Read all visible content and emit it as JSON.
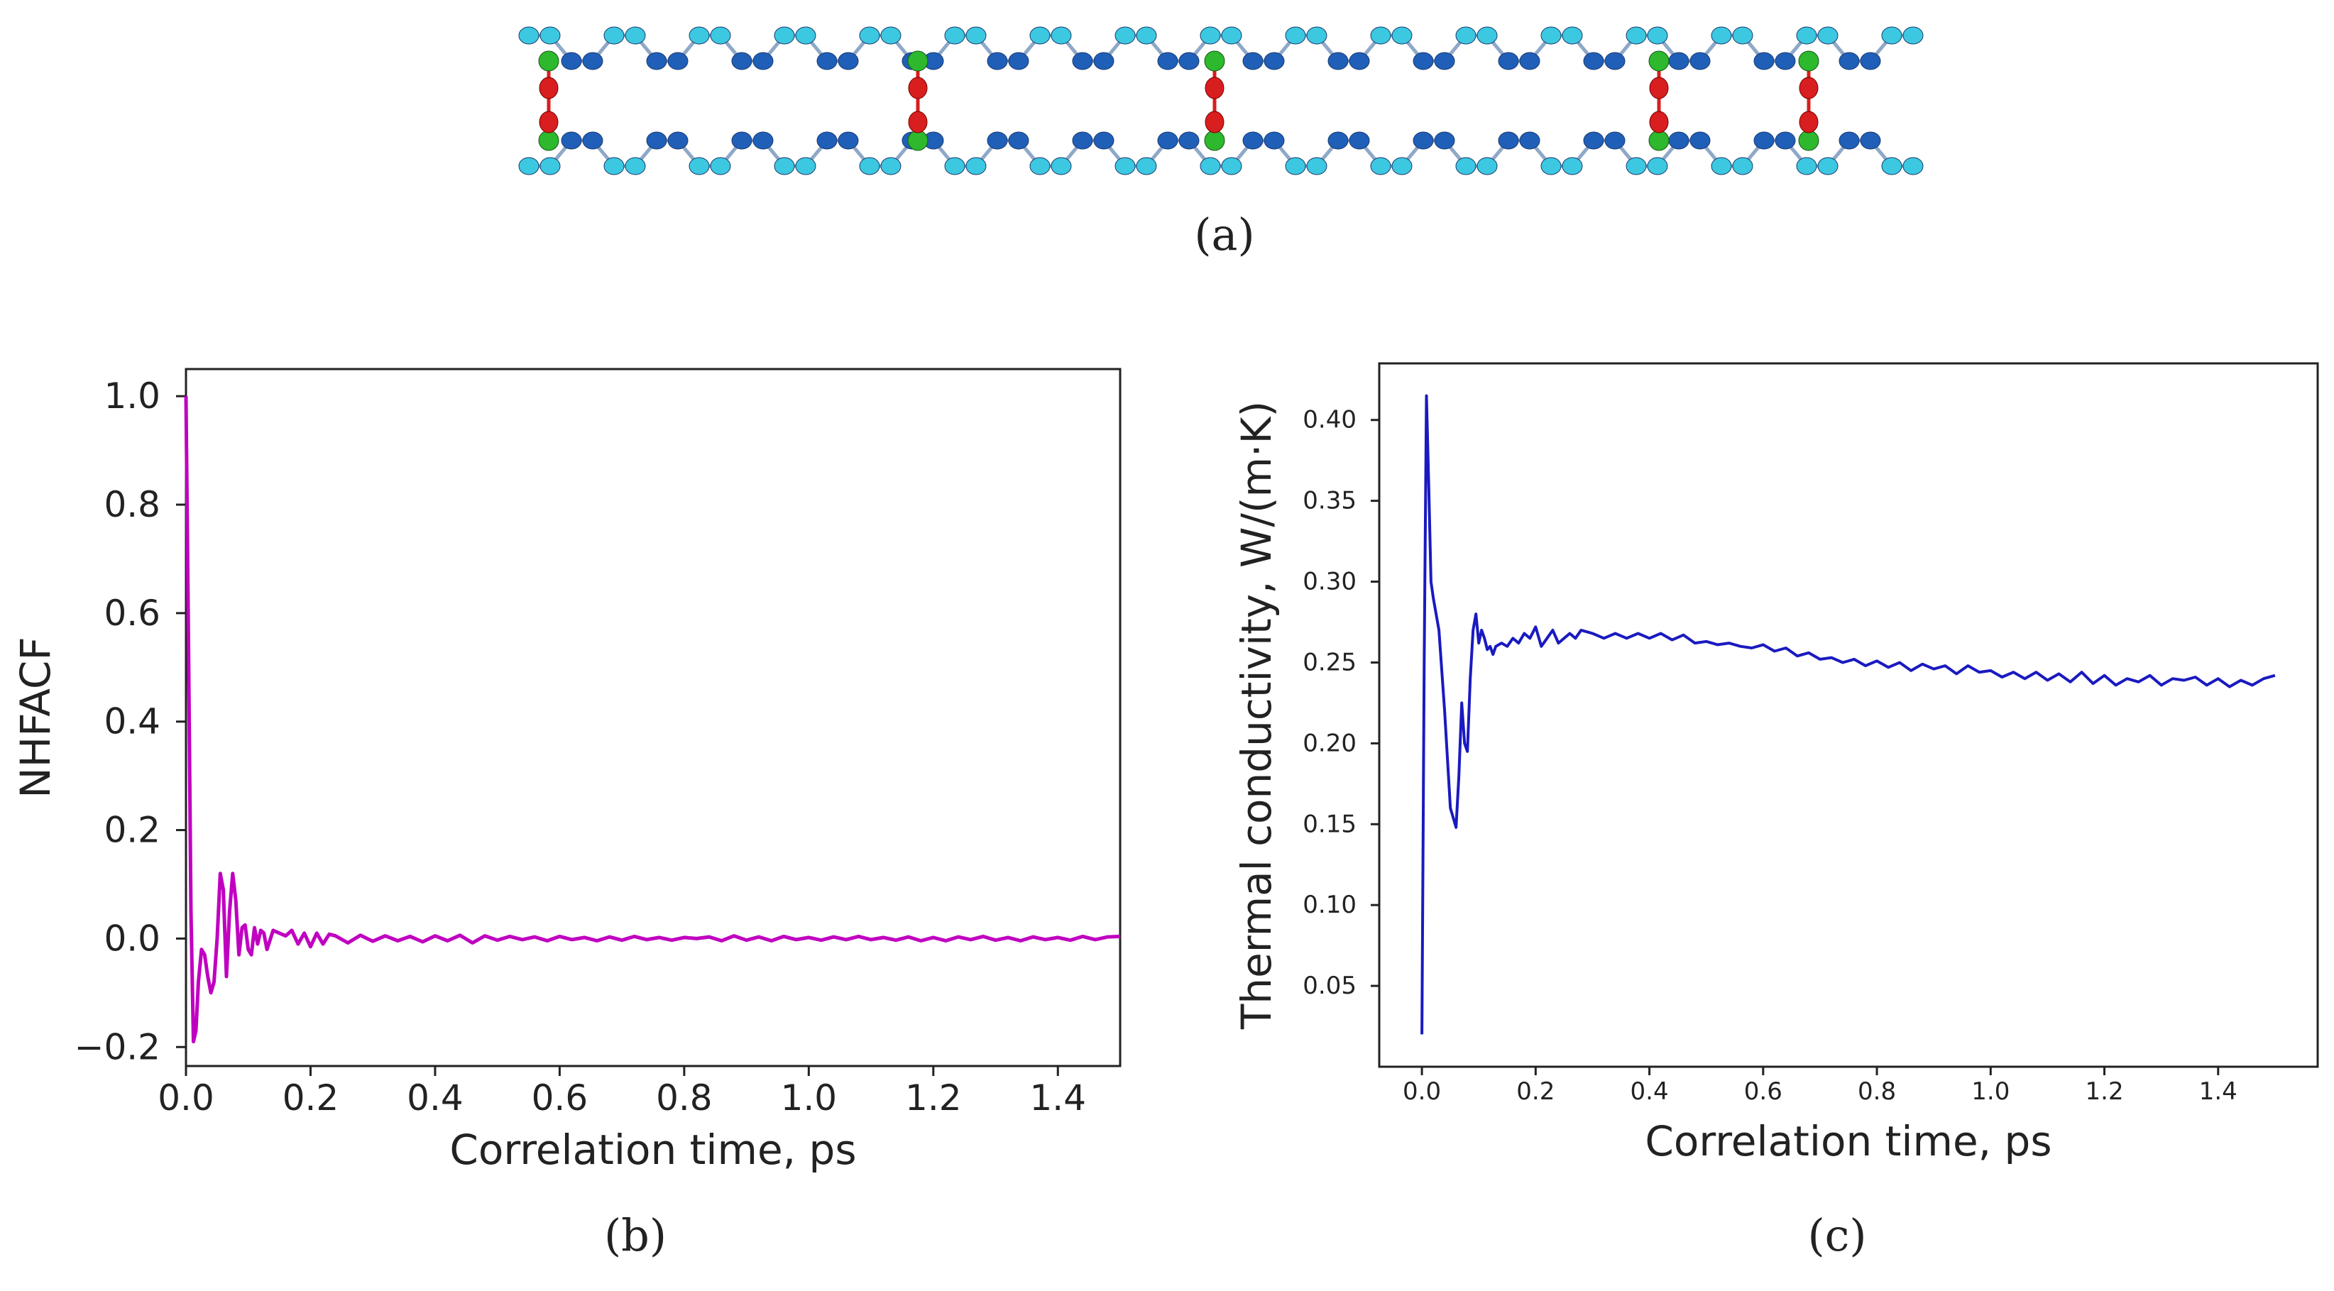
{
  "captions": {
    "a": "(a)",
    "b": "(b)",
    "c": "(c)"
  },
  "molecule": {
    "description_colors": {
      "chain_light": "#3cc8e0",
      "chain_dark": "#1f5fb8",
      "junction": "#2db82d",
      "bridge": "#d81e1e"
    }
  },
  "chart_data": [
    {
      "id": "b",
      "type": "line",
      "title": "",
      "xlabel": "Correlation time, ps",
      "ylabel": "NHFACF",
      "xlim": [
        0.0,
        1.5
      ],
      "ylim": [
        -0.235,
        1.05
      ],
      "xticks": [
        0.0,
        0.2,
        0.4,
        0.6,
        0.8,
        1.0,
        1.2,
        1.4
      ],
      "xtick_labels": [
        "0.0",
        "0.2",
        "0.4",
        "0.6",
        "0.8",
        "1.0",
        "1.2",
        "1.4"
      ],
      "yticks": [
        -0.2,
        0.0,
        0.2,
        0.4,
        0.6,
        0.8,
        1.0
      ],
      "ytick_labels": [
        "−0.2",
        "0.0",
        "0.2",
        "0.4",
        "0.6",
        "0.8",
        "1.0"
      ],
      "color": "#c000c0",
      "grid": false,
      "series": [
        {
          "name": "NHFACF",
          "x": [
            0.0,
            0.004,
            0.008,
            0.012,
            0.016,
            0.02,
            0.025,
            0.03,
            0.035,
            0.04,
            0.045,
            0.05,
            0.055,
            0.06,
            0.065,
            0.07,
            0.075,
            0.08,
            0.085,
            0.09,
            0.095,
            0.1,
            0.105,
            0.11,
            0.115,
            0.12,
            0.125,
            0.13,
            0.14,
            0.15,
            0.16,
            0.17,
            0.18,
            0.19,
            0.2,
            0.21,
            0.22,
            0.23,
            0.24,
            0.26,
            0.28,
            0.3,
            0.32,
            0.34,
            0.36,
            0.38,
            0.4,
            0.42,
            0.44,
            0.46,
            0.48,
            0.5,
            0.52,
            0.54,
            0.56,
            0.58,
            0.6,
            0.62,
            0.64,
            0.66,
            0.68,
            0.7,
            0.72,
            0.74,
            0.76,
            0.78,
            0.8,
            0.82,
            0.84,
            0.86,
            0.88,
            0.9,
            0.92,
            0.94,
            0.96,
            0.98,
            1.0,
            1.02,
            1.04,
            1.06,
            1.08,
            1.1,
            1.12,
            1.14,
            1.16,
            1.18,
            1.2,
            1.22,
            1.24,
            1.26,
            1.28,
            1.3,
            1.32,
            1.34,
            1.36,
            1.38,
            1.4,
            1.42,
            1.44,
            1.46,
            1.48,
            1.5
          ],
          "y": [
            1.0,
            0.55,
            0.05,
            -0.19,
            -0.17,
            -0.08,
            -0.02,
            -0.03,
            -0.07,
            -0.1,
            -0.08,
            0.0,
            0.12,
            0.09,
            -0.07,
            0.05,
            0.12,
            0.07,
            -0.03,
            0.02,
            0.025,
            -0.02,
            -0.03,
            0.02,
            -0.01,
            0.015,
            0.01,
            -0.02,
            0.015,
            0.01,
            0.005,
            0.015,
            -0.01,
            0.01,
            -0.015,
            0.01,
            -0.01,
            0.008,
            0.005,
            -0.008,
            0.006,
            -0.005,
            0.005,
            -0.004,
            0.004,
            -0.006,
            0.005,
            -0.004,
            0.006,
            -0.008,
            0.005,
            -0.003,
            0.004,
            -0.002,
            0.003,
            -0.004,
            0.004,
            -0.002,
            0.002,
            -0.004,
            0.003,
            -0.003,
            0.004,
            -0.002,
            0.002,
            -0.003,
            0.002,
            0.0,
            0.003,
            -0.004,
            0.005,
            -0.003,
            0.003,
            -0.004,
            0.004,
            -0.002,
            0.002,
            -0.003,
            0.003,
            -0.002,
            0.004,
            -0.002,
            0.002,
            -0.003,
            0.003,
            -0.004,
            0.002,
            -0.004,
            0.003,
            -0.002,
            0.004,
            -0.003,
            0.002,
            -0.004,
            0.003,
            -0.002,
            0.002,
            -0.003,
            0.004,
            -0.002,
            0.003,
            0.004
          ]
        }
      ]
    },
    {
      "id": "c",
      "type": "line",
      "title": "",
      "xlabel": "Correlation time, ps",
      "ylabel": "Thermal conductivity, W/(m·K)",
      "xlim": [
        -0.075,
        1.575
      ],
      "ylim": [
        0.0,
        0.435
      ],
      "xticks": [
        0.0,
        0.2,
        0.4,
        0.6,
        0.8,
        1.0,
        1.2,
        1.4
      ],
      "xtick_labels": [
        "0.0",
        "0.2",
        "0.4",
        "0.6",
        "0.8",
        "1.0",
        "1.2",
        "1.4"
      ],
      "yticks": [
        0.05,
        0.1,
        0.15,
        0.2,
        0.25,
        0.3,
        0.35,
        0.4
      ],
      "ytick_labels": [
        "0.05",
        "0.10",
        "0.15",
        "0.20",
        "0.25",
        "0.30",
        "0.35",
        "0.40"
      ],
      "color": "#1a1ac0",
      "grid": false,
      "series": [
        {
          "name": "Thermal conductivity",
          "x": [
            0.0,
            0.004,
            0.008,
            0.012,
            0.016,
            0.02,
            0.03,
            0.04,
            0.05,
            0.06,
            0.065,
            0.07,
            0.075,
            0.08,
            0.085,
            0.09,
            0.095,
            0.1,
            0.105,
            0.11,
            0.115,
            0.12,
            0.125,
            0.13,
            0.14,
            0.15,
            0.16,
            0.17,
            0.18,
            0.19,
            0.2,
            0.21,
            0.22,
            0.23,
            0.24,
            0.25,
            0.26,
            0.27,
            0.28,
            0.3,
            0.32,
            0.34,
            0.36,
            0.38,
            0.4,
            0.42,
            0.44,
            0.46,
            0.48,
            0.5,
            0.52,
            0.54,
            0.56,
            0.58,
            0.6,
            0.62,
            0.64,
            0.66,
            0.68,
            0.7,
            0.72,
            0.74,
            0.76,
            0.78,
            0.8,
            0.82,
            0.84,
            0.86,
            0.88,
            0.9,
            0.92,
            0.94,
            0.96,
            0.98,
            1.0,
            1.02,
            1.04,
            1.06,
            1.08,
            1.1,
            1.12,
            1.14,
            1.16,
            1.18,
            1.2,
            1.22,
            1.24,
            1.26,
            1.28,
            1.3,
            1.32,
            1.34,
            1.36,
            1.38,
            1.4,
            1.42,
            1.44,
            1.46,
            1.48,
            1.5
          ],
          "y": [
            0.02,
            0.25,
            0.415,
            0.36,
            0.3,
            0.29,
            0.27,
            0.22,
            0.16,
            0.148,
            0.18,
            0.225,
            0.2,
            0.195,
            0.24,
            0.27,
            0.28,
            0.262,
            0.27,
            0.265,
            0.258,
            0.26,
            0.255,
            0.26,
            0.262,
            0.26,
            0.265,
            0.262,
            0.268,
            0.265,
            0.272,
            0.26,
            0.265,
            0.27,
            0.262,
            0.265,
            0.268,
            0.265,
            0.27,
            0.268,
            0.265,
            0.268,
            0.265,
            0.268,
            0.265,
            0.268,
            0.264,
            0.267,
            0.262,
            0.263,
            0.261,
            0.262,
            0.26,
            0.259,
            0.261,
            0.257,
            0.259,
            0.254,
            0.256,
            0.252,
            0.253,
            0.25,
            0.252,
            0.248,
            0.251,
            0.247,
            0.25,
            0.245,
            0.249,
            0.246,
            0.248,
            0.243,
            0.248,
            0.244,
            0.245,
            0.241,
            0.244,
            0.24,
            0.244,
            0.239,
            0.243,
            0.238,
            0.244,
            0.237,
            0.242,
            0.236,
            0.24,
            0.238,
            0.242,
            0.236,
            0.24,
            0.239,
            0.241,
            0.236,
            0.24,
            0.235,
            0.239,
            0.236,
            0.24,
            0.242
          ]
        }
      ]
    }
  ]
}
